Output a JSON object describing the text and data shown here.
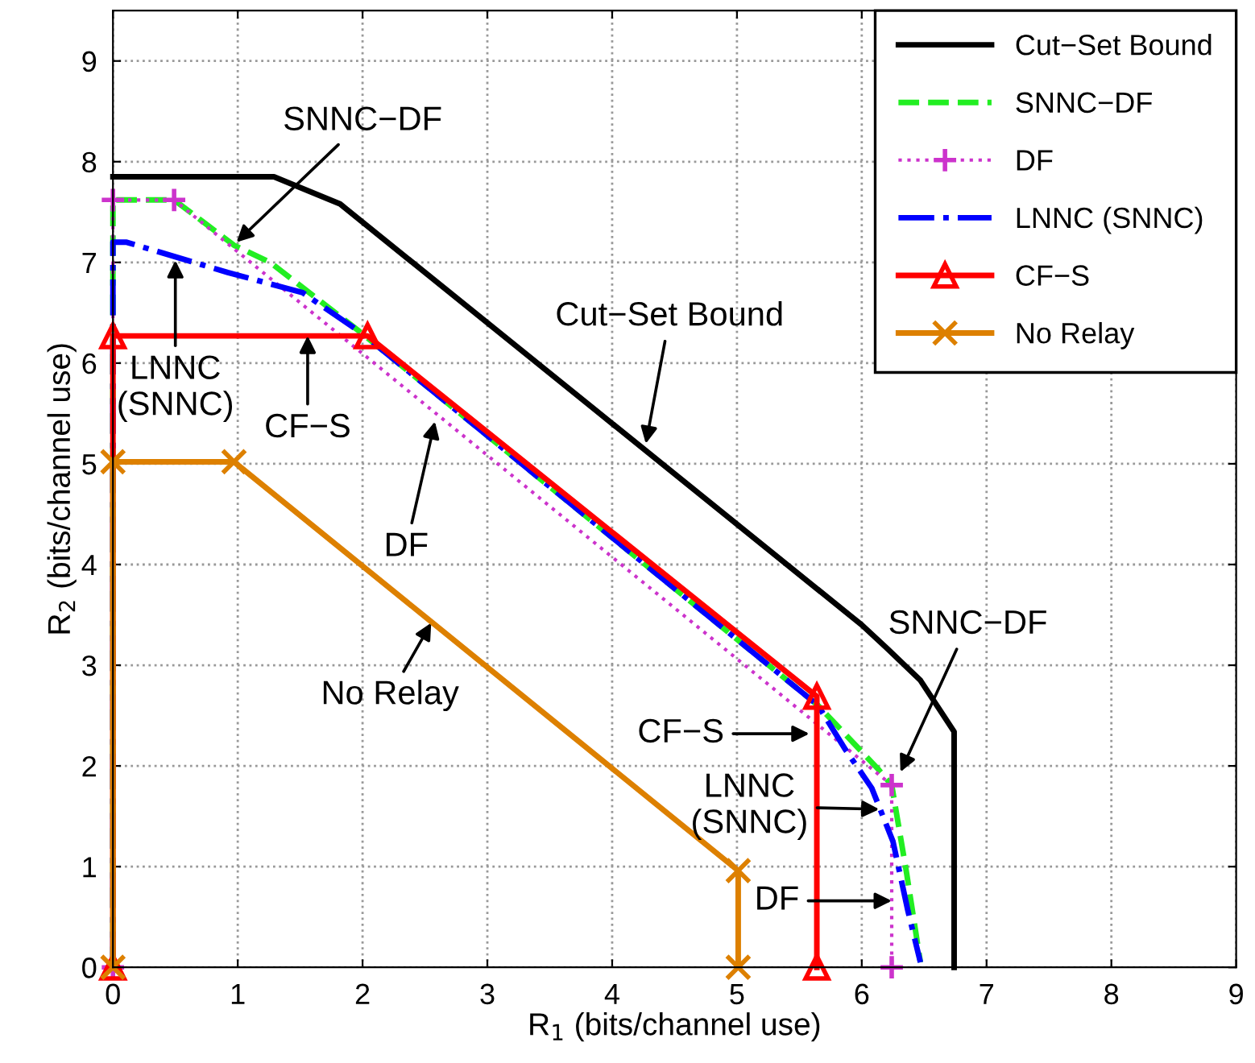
{
  "chart_data": {
    "type": "line",
    "xlabel": "R$_{1}$ (bits/channel use)",
    "ylabel": "R$_{2}$ (bits/channel use)",
    "xlim": [
      0,
      9
    ],
    "ylim": [
      0,
      9.5
    ],
    "xticks": [
      0,
      1,
      2,
      3,
      4,
      5,
      6,
      7,
      8,
      9
    ],
    "yticks": [
      0,
      1,
      2,
      3,
      4,
      5,
      6,
      7,
      8,
      9
    ],
    "grid": true,
    "legend": "top right",
    "series": [
      {
        "name": "Cut−Set Bound",
        "color": "#000000",
        "line_style": "solid",
        "marker": "none",
        "x": [
          0,
          1.29,
          1.82,
          6.0,
          6.2,
          6.47,
          6.74,
          6.74
        ],
        "values": [
          7.85,
          7.85,
          7.58,
          3.4,
          3.17,
          2.85,
          2.34,
          0
        ]
      },
      {
        "name": "SNNC−DF",
        "color": "#22ee22",
        "line_style": "dashed",
        "marker": "none",
        "x": [
          0,
          0,
          0.49,
          0.97,
          1.26,
          1.99,
          5.65,
          6.13,
          6.24,
          6.36,
          6.47
        ],
        "values": [
          0,
          7.62,
          7.62,
          7.17,
          7.0,
          6.3,
          2.6,
          1.97,
          1.81,
          0.93,
          0.05
        ]
      },
      {
        "name": "DF",
        "color": "#cc33cc",
        "line_style": "dotted",
        "marker": "plus",
        "x": [
          0,
          0,
          0.49,
          6.24,
          6.24
        ],
        "values": [
          0,
          7.62,
          7.62,
          1.81,
          0
        ]
      },
      {
        "name": "LNNC (SNNC)",
        "color": "#0000ff",
        "line_style": "dashdot",
        "marker": "none",
        "x": [
          0,
          0,
          0.11,
          0.92,
          1.52,
          1.99,
          5.65,
          5.87,
          6.08,
          6.25,
          6.37,
          6.47
        ],
        "values": [
          0,
          7.2,
          7.2,
          6.9,
          6.7,
          6.3,
          2.6,
          2.16,
          1.78,
          1.25,
          0.56,
          0.05
        ]
      },
      {
        "name": "CF−S",
        "color": "#ff0000",
        "line_style": "solid",
        "marker": "triangle",
        "x": [
          0,
          0,
          2.04,
          5.64,
          5.64
        ],
        "values": [
          0,
          6.27,
          6.27,
          2.69,
          0
        ]
      },
      {
        "name": "No Relay",
        "color": "#dd8000",
        "line_style": "solid",
        "marker": "cross",
        "x": [
          0,
          0,
          0.97,
          5.01,
          5.01
        ],
        "values": [
          0,
          5.02,
          5.02,
          0.96,
          0
        ]
      }
    ],
    "annotations": [
      {
        "text": "SNNC−DF",
        "x": 0.99,
        "y": 7.2
      },
      {
        "text": "LNNC\n(SNNC)",
        "x": 0.5,
        "y": 7.02
      },
      {
        "text": "CF−S",
        "x": 1.56,
        "y": 6.27
      },
      {
        "text": "DF",
        "x": 2.58,
        "y": 5.42
      },
      {
        "text": "Cut−Set Bound",
        "x": 4.27,
        "y": 5.2
      },
      {
        "text": "No Relay",
        "x": 2.55,
        "y": 3.42
      },
      {
        "text": "SNNC−DF",
        "x": 6.31,
        "y": 1.94
      },
      {
        "text": "CF−S",
        "x": 5.58,
        "y": 2.32
      },
      {
        "text": "LNNC\n(SNNC)",
        "x": 6.14,
        "y": 1.57
      },
      {
        "text": "DF",
        "x": 6.24,
        "y": 0.66
      }
    ]
  }
}
